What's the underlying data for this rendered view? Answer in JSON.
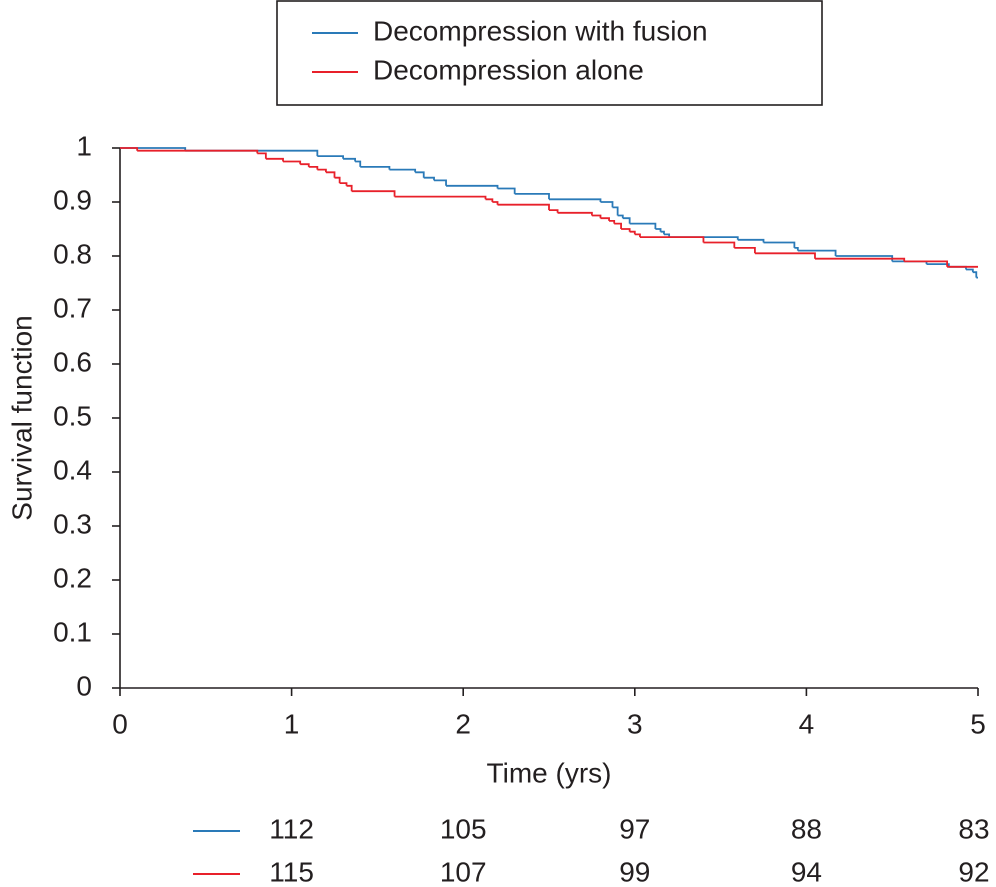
{
  "chart_data": {
    "type": "step",
    "y_label": "Survival function",
    "x_label": "Time (yrs)",
    "xlim": [
      0,
      5
    ],
    "xticks": [
      0,
      1,
      2,
      3,
      4,
      5
    ],
    "ylim": [
      0,
      1
    ],
    "yticks": [
      0,
      0.1,
      0.2,
      0.3,
      0.4,
      0.5,
      0.6,
      0.7,
      0.8,
      0.9,
      1
    ],
    "series": [
      {
        "name": "Decompression with fusion",
        "color": "#2a7ab8",
        "x": [
          0,
          0.38,
          1.15,
          1.3,
          1.37,
          1.4,
          1.57,
          1.72,
          1.77,
          1.83,
          1.9,
          2.2,
          2.3,
          2.5,
          2.8,
          2.87,
          2.9,
          2.93,
          2.97,
          3.12,
          3.15,
          3.17,
          3.2,
          3.6,
          3.75,
          3.93,
          3.95,
          4.17,
          4.5,
          4.7,
          4.83,
          4.93,
          4.97,
          4.99,
          5
        ],
        "values": [
          1,
          0.995,
          0.985,
          0.98,
          0.975,
          0.965,
          0.96,
          0.955,
          0.945,
          0.94,
          0.93,
          0.925,
          0.915,
          0.905,
          0.9,
          0.89,
          0.875,
          0.87,
          0.86,
          0.85,
          0.845,
          0.84,
          0.835,
          0.83,
          0.825,
          0.815,
          0.81,
          0.8,
          0.79,
          0.785,
          0.78,
          0.775,
          0.77,
          0.76,
          0.76
        ],
        "at_risk": [
          "112",
          "105",
          "97",
          "88",
          "83"
        ]
      },
      {
        "name": "Decompression alone",
        "color": "#e8202a",
        "x": [
          0,
          0.1,
          0.8,
          0.85,
          0.95,
          1.05,
          1.1,
          1.15,
          1.2,
          1.25,
          1.28,
          1.32,
          1.35,
          1.6,
          2.13,
          2.17,
          2.2,
          2.5,
          2.55,
          2.75,
          2.8,
          2.85,
          2.88,
          2.92,
          2.97,
          3.0,
          3.03,
          3.4,
          3.58,
          3.7,
          4.05,
          4.57,
          4.82,
          5
        ],
        "values": [
          1,
          0.995,
          0.99,
          0.98,
          0.975,
          0.97,
          0.965,
          0.96,
          0.955,
          0.945,
          0.935,
          0.93,
          0.92,
          0.91,
          0.905,
          0.9,
          0.895,
          0.885,
          0.88,
          0.875,
          0.87,
          0.865,
          0.86,
          0.85,
          0.845,
          0.84,
          0.835,
          0.825,
          0.815,
          0.805,
          0.795,
          0.79,
          0.78,
          0.78
        ],
        "at_risk": [
          "115",
          "107",
          "99",
          "94",
          "92"
        ]
      }
    ]
  }
}
